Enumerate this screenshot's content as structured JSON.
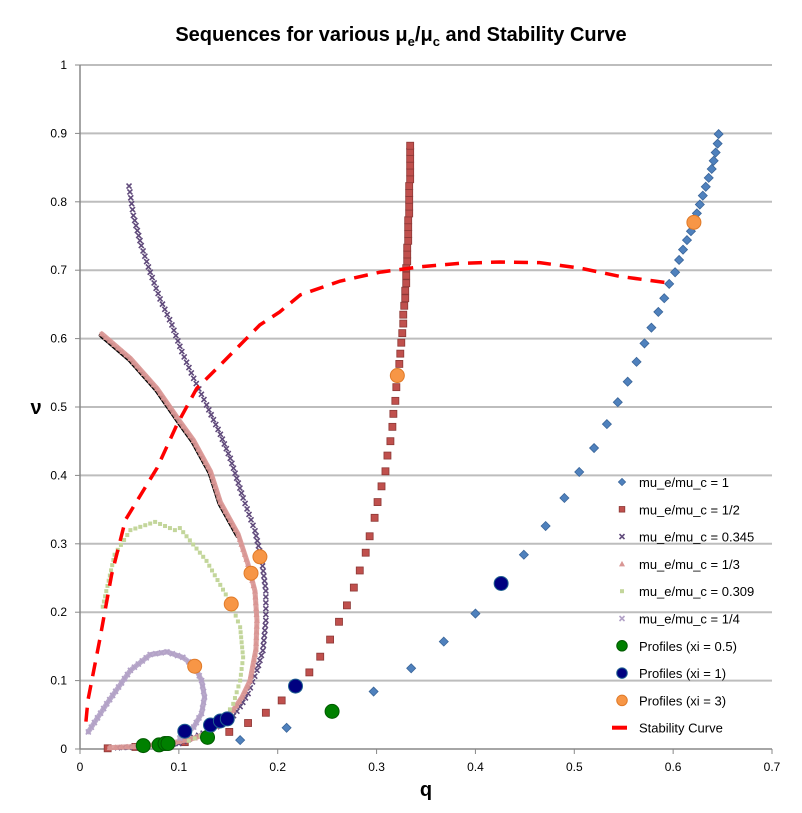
{
  "chart_data": {
    "type": "scatter",
    "title": {
      "prefix": "Sequences for various ",
      "mu": "μ",
      "sub_e": "e",
      "slash": "/",
      "sub_c": "c",
      "suffix": " and Stability Curve"
    },
    "xlabel": "q",
    "ylabel": "ν",
    "xlim": [
      0,
      0.7
    ],
    "ylim": [
      0,
      1
    ],
    "xticks": [
      "0",
      "0.1",
      "0.2",
      "0.3",
      "0.4",
      "0.5",
      "0.6",
      "0.7"
    ],
    "yticks": [
      "0",
      "0.1",
      "0.2",
      "0.3",
      "0.4",
      "0.5",
      "0.6",
      "0.7",
      "0.8",
      "0.9",
      "1"
    ],
    "grid": "horizontal",
    "legend_position": "bottom-right",
    "series": [
      {
        "name": "mu_e/mu_c = 1",
        "marker": "diamond",
        "color": "#4F81BD",
        "stroke": "#3A6599",
        "dense": false,
        "points": [
          [
            0.162,
            0.013
          ],
          [
            0.209,
            0.031
          ],
          [
            0.297,
            0.084
          ],
          [
            0.335,
            0.118
          ],
          [
            0.368,
            0.157
          ],
          [
            0.4,
            0.198
          ],
          [
            0.449,
            0.284
          ],
          [
            0.471,
            0.326
          ],
          [
            0.49,
            0.367
          ],
          [
            0.505,
            0.405
          ],
          [
            0.52,
            0.44
          ],
          [
            0.533,
            0.475
          ],
          [
            0.544,
            0.507
          ],
          [
            0.554,
            0.537
          ],
          [
            0.563,
            0.566
          ],
          [
            0.571,
            0.593
          ],
          [
            0.578,
            0.616
          ],
          [
            0.585,
            0.639
          ],
          [
            0.591,
            0.659
          ],
          [
            0.596,
            0.68
          ],
          [
            0.602,
            0.697
          ],
          [
            0.606,
            0.715
          ],
          [
            0.61,
            0.73
          ],
          [
            0.614,
            0.744
          ],
          [
            0.618,
            0.757
          ],
          [
            0.621,
            0.77
          ],
          [
            0.624,
            0.783
          ],
          [
            0.627,
            0.796
          ],
          [
            0.63,
            0.809
          ],
          [
            0.633,
            0.822
          ],
          [
            0.636,
            0.835
          ],
          [
            0.639,
            0.848
          ],
          [
            0.641,
            0.86
          ],
          [
            0.643,
            0.872
          ],
          [
            0.645,
            0.885
          ],
          [
            0.646,
            0.899
          ]
        ]
      },
      {
        "name": "mu_e/mu_c = 1/2",
        "marker": "square",
        "color": "#C0504D",
        "stroke": "#8C3836",
        "dense": false,
        "points": [
          [
            0.028,
            0.001
          ],
          [
            0.056,
            0.003
          ],
          [
            0.106,
            0.01
          ],
          [
            0.151,
            0.025
          ],
          [
            0.17,
            0.038
          ],
          [
            0.188,
            0.053
          ],
          [
            0.204,
            0.071
          ],
          [
            0.232,
            0.112
          ],
          [
            0.243,
            0.135
          ],
          [
            0.253,
            0.16
          ],
          [
            0.262,
            0.186
          ],
          [
            0.27,
            0.21
          ],
          [
            0.277,
            0.236
          ],
          [
            0.283,
            0.261
          ],
          [
            0.289,
            0.287
          ],
          [
            0.293,
            0.311
          ],
          [
            0.298,
            0.338
          ],
          [
            0.301,
            0.361
          ],
          [
            0.305,
            0.384
          ],
          [
            0.309,
            0.406
          ],
          [
            0.311,
            0.429
          ],
          [
            0.314,
            0.45
          ],
          [
            0.316,
            0.471
          ],
          [
            0.317,
            0.49
          ],
          [
            0.319,
            0.509
          ],
          [
            0.32,
            0.529
          ],
          [
            0.323,
            0.563
          ],
          [
            0.324,
            0.578
          ],
          [
            0.325,
            0.594
          ],
          [
            0.326,
            0.608
          ],
          [
            0.327,
            0.622
          ],
          [
            0.327,
            0.635
          ],
          [
            0.328,
            0.648
          ],
          [
            0.329,
            0.659
          ],
          [
            0.329,
            0.67
          ],
          [
            0.33,
            0.681
          ],
          [
            0.33,
            0.692
          ],
          [
            0.33,
            0.703
          ],
          [
            0.331,
            0.713
          ],
          [
            0.331,
            0.723
          ],
          [
            0.331,
            0.733
          ],
          [
            0.332,
            0.743
          ],
          [
            0.332,
            0.753
          ],
          [
            0.332,
            0.763
          ],
          [
            0.332,
            0.773
          ],
          [
            0.333,
            0.783
          ],
          [
            0.333,
            0.793
          ],
          [
            0.333,
            0.803
          ],
          [
            0.333,
            0.813
          ],
          [
            0.333,
            0.823
          ],
          [
            0.334,
            0.833
          ],
          [
            0.334,
            0.843
          ],
          [
            0.334,
            0.853
          ],
          [
            0.334,
            0.863
          ],
          [
            0.334,
            0.873
          ],
          [
            0.334,
            0.882
          ]
        ]
      },
      {
        "name": "mu_e/mu_c = 0.345",
        "marker": "x",
        "color": "#604A7B",
        "stroke": "#604A7B",
        "dense": true,
        "points": [
          [
            0.038,
            0.002
          ],
          [
            0.055,
            0.003
          ],
          [
            0.1,
            0.008
          ],
          [
            0.12,
            0.02
          ],
          [
            0.152,
            0.042
          ],
          [
            0.162,
            0.062
          ],
          [
            0.17,
            0.081
          ],
          [
            0.179,
            0.115
          ],
          [
            0.185,
            0.144
          ],
          [
            0.188,
            0.188
          ],
          [
            0.188,
            0.231
          ],
          [
            0.184,
            0.275
          ],
          [
            0.177,
            0.319
          ],
          [
            0.165,
            0.367
          ],
          [
            0.152,
            0.425
          ],
          [
            0.142,
            0.46
          ],
          [
            0.128,
            0.503
          ],
          [
            0.115,
            0.542
          ],
          [
            0.103,
            0.581
          ],
          [
            0.093,
            0.62
          ],
          [
            0.081,
            0.658
          ],
          [
            0.071,
            0.697
          ],
          [
            0.062,
            0.736
          ],
          [
            0.054,
            0.78
          ],
          [
            0.0496,
            0.823
          ]
        ]
      },
      {
        "name": "mu_e/mu_c = 1/3",
        "marker": "triangle",
        "color": "#D99694",
        "stroke": "#C07A78",
        "dense": true,
        "line": true,
        "points": [
          [
            0.03,
            0.002
          ],
          [
            0.06,
            0.004
          ],
          [
            0.09,
            0.008
          ],
          [
            0.116,
            0.016
          ],
          [
            0.128,
            0.023
          ],
          [
            0.142,
            0.038
          ],
          [
            0.155,
            0.057
          ],
          [
            0.164,
            0.076
          ],
          [
            0.172,
            0.1
          ],
          [
            0.178,
            0.146
          ],
          [
            0.179,
            0.188
          ],
          [
            0.177,
            0.231
          ],
          [
            0.17,
            0.27
          ],
          [
            0.16,
            0.314
          ],
          [
            0.142,
            0.361
          ],
          [
            0.132,
            0.406
          ],
          [
            0.115,
            0.451
          ],
          [
            0.101,
            0.479
          ],
          [
            0.078,
            0.527
          ],
          [
            0.051,
            0.571
          ],
          [
            0.022,
            0.607
          ]
        ]
      },
      {
        "name": "mu_e/mu_c = 0.309",
        "marker": "dot",
        "color": "#C3D69B",
        "stroke": "#A9C47F",
        "dense": true,
        "points": [
          [
            0.023,
            0.208
          ],
          [
            0.035,
            0.284
          ],
          [
            0.051,
            0.32
          ],
          [
            0.076,
            0.332
          ],
          [
            0.096,
            0.32
          ],
          [
            0.101,
            0.323
          ],
          [
            0.128,
            0.275
          ],
          [
            0.153,
            0.212
          ],
          [
            0.162,
            0.178
          ],
          [
            0.165,
            0.134
          ],
          [
            0.162,
            0.1
          ],
          [
            0.155,
            0.066
          ],
          [
            0.145,
            0.042
          ],
          [
            0.128,
            0.023
          ],
          [
            0.11,
            0.012
          ]
        ]
      },
      {
        "name": "mu_e/mu_c = 1/4",
        "marker": "x",
        "color": "#B3A2C7",
        "stroke": "#9C88B5",
        "dense": true,
        "line": true,
        "points": [
          [
            0.0084,
            0.025
          ],
          [
            0.027,
            0.066
          ],
          [
            0.051,
            0.115
          ],
          [
            0.071,
            0.138
          ],
          [
            0.088,
            0.142
          ],
          [
            0.104,
            0.134
          ],
          [
            0.116,
            0.121
          ],
          [
            0.123,
            0.1
          ],
          [
            0.126,
            0.076
          ],
          [
            0.123,
            0.052
          ],
          [
            0.115,
            0.032
          ],
          [
            0.101,
            0.016
          ]
        ]
      },
      {
        "name": "Profiles (xi = 0.5)",
        "marker": "circle",
        "color": "#008000",
        "stroke": "#005A00",
        "dense": false,
        "points": [
          [
            0.064,
            0.005
          ],
          [
            0.08,
            0.006
          ],
          [
            0.086,
            0.008
          ],
          [
            0.089,
            0.008
          ],
          [
            0.129,
            0.017
          ],
          [
            0.255,
            0.055
          ]
        ]
      },
      {
        "name": "Profiles (xi = 1)",
        "marker": "circle",
        "color": "#000080",
        "stroke": "#1F5F8F",
        "dense": false,
        "points": [
          [
            0.106,
            0.026
          ],
          [
            0.132,
            0.035
          ],
          [
            0.142,
            0.041
          ],
          [
            0.149,
            0.044
          ],
          [
            0.218,
            0.092
          ],
          [
            0.426,
            0.242
          ]
        ]
      },
      {
        "name": "Profiles (xi = 3)",
        "marker": "circle",
        "color": "#F79646",
        "stroke": "#E07A28",
        "dense": false,
        "points": [
          [
            0.621,
            0.77
          ],
          [
            0.321,
            0.546
          ],
          [
            0.182,
            0.281
          ],
          [
            0.173,
            0.257
          ],
          [
            0.153,
            0.212
          ],
          [
            0.116,
            0.121
          ]
        ]
      },
      {
        "name": "Stability Curve",
        "marker": "dash",
        "color": "#FF0000",
        "stroke": "#FF0000",
        "dense": false,
        "points": [
          [
            0.006,
            0.04
          ],
          [
            0.008,
            0.071
          ],
          [
            0.02,
            0.16
          ],
          [
            0.032,
            0.255
          ],
          [
            0.046,
            0.335
          ],
          [
            0.078,
            0.411
          ],
          [
            0.098,
            0.474
          ],
          [
            0.118,
            0.527
          ],
          [
            0.145,
            0.566
          ],
          [
            0.182,
            0.62
          ],
          [
            0.202,
            0.639
          ],
          [
            0.223,
            0.664
          ],
          [
            0.263,
            0.684
          ],
          [
            0.303,
            0.697
          ],
          [
            0.344,
            0.705
          ],
          [
            0.384,
            0.71
          ],
          [
            0.425,
            0.712
          ],
          [
            0.465,
            0.711
          ],
          [
            0.506,
            0.703
          ],
          [
            0.546,
            0.691
          ],
          [
            0.597,
            0.681
          ]
        ]
      }
    ]
  }
}
